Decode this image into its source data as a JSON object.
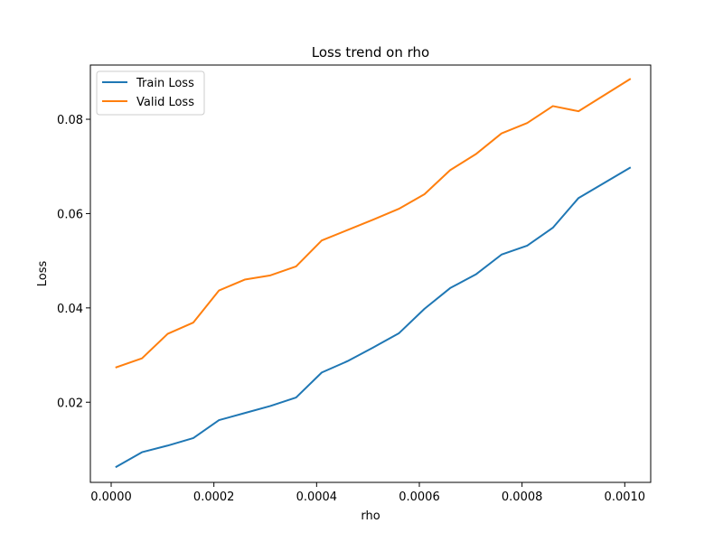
{
  "chart_data": {
    "type": "line",
    "title": "Loss trend on rho",
    "xlabel": "rho",
    "ylabel": "Loss",
    "xlim": [
      -4.05e-05,
      0.0010505
    ],
    "ylim": [
      0.003,
      0.0915
    ],
    "xticks": [
      0.0,
      0.0002,
      0.0004,
      0.0006,
      0.0008,
      0.001
    ],
    "xtick_labels": [
      "0.0000",
      "0.0002",
      "0.0004",
      "0.0006",
      "0.0008",
      "0.0010"
    ],
    "yticks": [
      0.02,
      0.04,
      0.06,
      0.08
    ],
    "ytick_labels": [
      "0.02",
      "0.04",
      "0.06",
      "0.08"
    ],
    "grid": false,
    "legend_position": "upper-left",
    "x": [
      1e-05,
      6e-05,
      0.00011,
      0.00016,
      0.00021,
      0.00026,
      0.00031,
      0.00036,
      0.00041,
      0.00046,
      0.00051,
      0.00056,
      0.00061,
      0.00066,
      0.00071,
      0.00076,
      0.00081,
      0.00086,
      0.00091,
      0.00096,
      0.00101
    ],
    "series": [
      {
        "name": "Train Loss",
        "color": "#1f77b4",
        "values": [
          0.0063,
          0.0094,
          0.0108,
          0.0124,
          0.0162,
          0.0177,
          0.0192,
          0.021,
          0.0263,
          0.0287,
          0.0316,
          0.0346,
          0.0398,
          0.0442,
          0.0471,
          0.0513,
          0.0532,
          0.057,
          0.0633,
          0.0665,
          0.0697
        ]
      },
      {
        "name": "Valid Loss",
        "color": "#ff7f0e",
        "values": [
          0.0274,
          0.0293,
          0.0345,
          0.0369,
          0.0437,
          0.046,
          0.0469,
          0.0488,
          0.0543,
          0.0565,
          0.0587,
          0.061,
          0.0641,
          0.0692,
          0.0726,
          0.077,
          0.0792,
          0.0828,
          0.0817,
          0.0851,
          0.0885
        ]
      }
    ]
  }
}
